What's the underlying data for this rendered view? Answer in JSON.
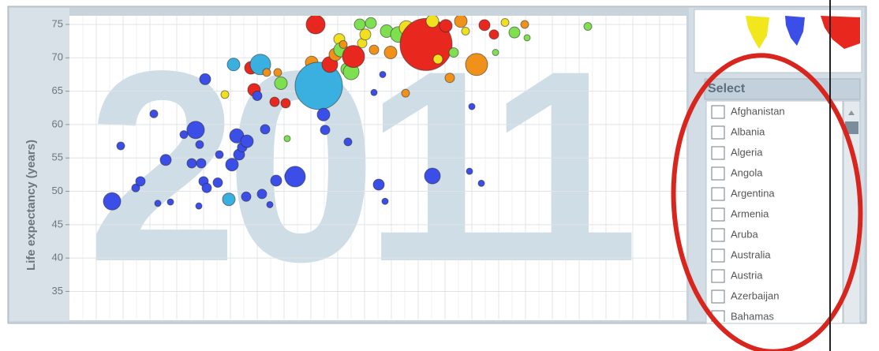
{
  "chart_data": {
    "type": "scatter",
    "watermark": "2011",
    "y_label": "Life expectancy (years)",
    "ylim": [
      30.8,
      76.3
    ],
    "yticks": [
      35,
      40,
      45,
      50,
      55,
      60,
      65,
      70,
      75
    ],
    "grid": true,
    "xlim": [
      0,
      782
    ],
    "x": [
      54,
      65,
      84,
      90,
      107,
      112,
      122,
      128,
      145,
      155,
      160,
      164,
      165,
      167,
      170,
      172,
      174,
      188,
      190,
      197,
      202,
      206,
      208,
      212,
      215,
      219,
      225,
      224,
      230,
      234,
      242,
      238,
      244,
      248,
      250,
      254,
      260,
      262,
      264,
      268,
      274,
      276,
      278,
      286,
      298,
      307,
      312,
      316,
      322,
      324,
      330,
      337,
      342,
      344,
      347,
      352,
      357,
      360,
      368,
      353,
      371,
      375,
      382,
      386,
      386,
      392,
      397,
      400,
      402,
      407,
      417,
      426,
      427,
      432,
      452,
      460,
      460,
      467,
      477,
      482,
      487,
      496,
      502,
      507,
      510,
      516,
      522,
      526,
      538,
      540,
      552,
      564,
      577,
      580,
      657
    ],
    "y": [
      48.5,
      56.8,
      50.5,
      51.5,
      61.6,
      48.2,
      54.7,
      48.4,
      58.5,
      54.2,
      59.2,
      47.8,
      57.0,
      54.2,
      51.5,
      66.8,
      50.5,
      51.3,
      55.5,
      64.5,
      48.8,
      54.0,
      69.0,
      58.3,
      55.5,
      56.6,
      57.5,
      49.2,
      68.5,
      65.2,
      69.0,
      64.3,
      49.6,
      59.3,
      67.8,
      48.0,
      63.4,
      51.6,
      67.8,
      66.2,
      63.2,
      57.9,
      52.3,
      52.2,
      67.6,
      69.3,
      75.0,
      65.8,
      61.5,
      59.2,
      69.0,
      70.5,
      72.8,
      71.2,
      72.0,
      68.3,
      67.9,
      70.2,
      75.0,
      57.4,
      72.2,
      73.5,
      75.2,
      64.8,
      71.2,
      51.0,
      67.5,
      48.5,
      74.0,
      70.8,
      73.5,
      64.7,
      74.5,
      71.5,
      72.0,
      52.3,
      75.5,
      69.8,
      74.8,
      67.0,
      70.8,
      75.5,
      74.0,
      53.0,
      62.7,
      69.0,
      51.2,
      74.9,
      73.5,
      70.8,
      75.3,
      73.8,
      75.0,
      73.0,
      74.7
    ],
    "sizes": [
      11,
      5,
      5,
      6,
      5,
      4,
      7,
      4,
      5,
      6,
      11,
      4,
      5,
      6,
      6,
      7,
      6,
      6,
      5,
      5,
      8,
      8,
      8,
      9,
      7,
      6,
      8,
      6,
      8,
      8,
      13,
      6,
      6,
      6,
      5,
      4,
      6,
      7,
      5,
      8,
      6,
      4,
      5,
      13,
      5,
      8,
      12,
      30,
      8,
      6,
      10,
      8,
      7,
      9,
      5,
      8,
      10,
      14,
      7,
      5,
      6,
      7,
      7,
      4,
      6,
      7,
      4,
      4,
      8,
      8,
      10,
      5,
      9,
      7,
      33,
      10,
      8,
      6,
      8,
      6,
      6,
      8,
      5,
      4,
      4,
      14,
      4,
      7,
      6,
      4,
      5,
      7,
      5,
      4,
      5
    ],
    "colors": [
      "#3b4ee8",
      "#3b4ee8",
      "#3b4ee8",
      "#3b4ee8",
      "#3b4ee8",
      "#3b4ee8",
      "#3b4ee8",
      "#3b4ee8",
      "#3b4ee8",
      "#3b4ee8",
      "#3b4ee8",
      "#3b4ee8",
      "#3b4ee8",
      "#3b4ee8",
      "#3b4ee8",
      "#3b4ee8",
      "#3b4ee8",
      "#3b4ee8",
      "#3b4ee8",
      "#f0e020",
      "#3ab0e0",
      "#3b4ee8",
      "#3ab0e0",
      "#3b4ee8",
      "#3b4ee8",
      "#3b4ee8",
      "#3b4ee8",
      "#3b4ee8",
      "#e8281e",
      "#e8281e",
      "#3ab0e0",
      "#3b4ee8",
      "#3b4ee8",
      "#3b4ee8",
      "#f0911a",
      "#3b4ee8",
      "#e8281e",
      "#3b4ee8",
      "#f0911a",
      "#7ee050",
      "#e8281e",
      "#7ee050",
      "#3b4ee8",
      "#3b4ee8",
      "#f0911a",
      "#f0911a",
      "#e8281e",
      "#3ab0e0",
      "#3b4ee8",
      "#3b4ee8",
      "#e8281e",
      "#f0911a",
      "#f0e020",
      "#7ee050",
      "#f0911a",
      "#7ee050",
      "#7ee050",
      "#e8281e",
      "#7ee050",
      "#3b4ee8",
      "#f0e020",
      "#f0e020",
      "#7ee050",
      "#3b4ee8",
      "#f0911a",
      "#3b4ee8",
      "#3b4ee8",
      "#3b4ee8",
      "#7ee050",
      "#f0911a",
      "#7ee050",
      "#f0911a",
      "#f0e020",
      "#e8281e",
      "#e8281e",
      "#3b4ee8",
      "#f0e020",
      "#f0e020",
      "#e8281e",
      "#f0911a",
      "#7ee050",
      "#f0911a",
      "#f0e020",
      "#3b4ee8",
      "#3b4ee8",
      "#f0911a",
      "#3b4ee8",
      "#e8281e",
      "#e8281e",
      "#7ee050",
      "#f0e020",
      "#7ee050",
      "#f0911a",
      "#7ee050",
      "#7ee050"
    ]
  },
  "country_selector": {
    "title": "Select",
    "items": [
      "Afghanistan",
      "Albania",
      "Algeria",
      "Angola",
      "Argentina",
      "Armenia",
      "Aruba",
      "Australia",
      "Austria",
      "Azerbaijan",
      "Bahamas"
    ]
  }
}
